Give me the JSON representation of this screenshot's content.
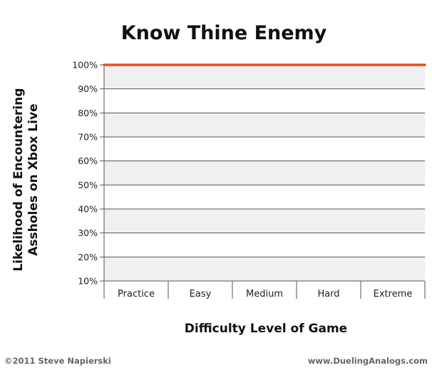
{
  "footer": {
    "copyright": "©2011 Steve Napierski",
    "website": "www.DuelingAnalogs.com"
  },
  "colors": {
    "line": "#e0531c",
    "band": "#f0f0f0",
    "grid": "#555555"
  },
  "chart_data": {
    "type": "line",
    "title": "Know Thine Enemy",
    "xlabel": "Difficulty Level of Game",
    "ylabel_lines": [
      "Likelihood of Encountering",
      "Assholes on Xbox Live"
    ],
    "categories": [
      "Practice",
      "Easy",
      "Medium",
      "Hard",
      "Extreme"
    ],
    "yticks": [
      "10%",
      "20%",
      "30%",
      "40%",
      "50%",
      "60%",
      "70%",
      "80%",
      "90%",
      "100%"
    ],
    "ylim": [
      10,
      100
    ],
    "series": [
      {
        "values": [
          100,
          100,
          100,
          100,
          100
        ]
      }
    ],
    "grid": true,
    "legend": "none"
  }
}
